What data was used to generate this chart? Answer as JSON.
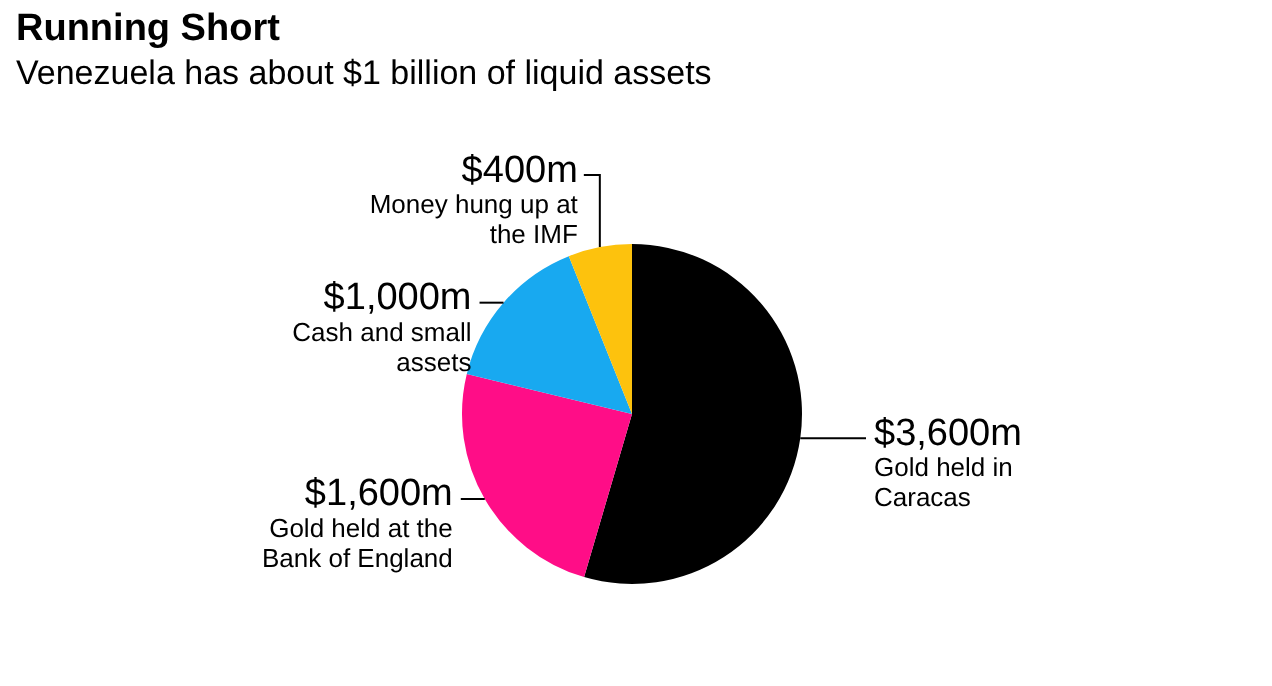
{
  "chart_data": {
    "type": "pie",
    "title": "Running Short",
    "subtitle": "Venezuela has about $1 billion of liquid assets",
    "categories": [
      "Gold held in Caracas",
      "Gold held at the Bank of England",
      "Cash and small assets",
      "Money hung up at the IMF"
    ],
    "values": [
      3600,
      1600,
      1000,
      400
    ],
    "colors": [
      "#000000",
      "#ff0d87",
      "#18a9f0",
      "#fdc20d"
    ],
    "value_labels": [
      "$3,600m",
      "$1,600m",
      "$1,000m",
      "$400m"
    ],
    "legend": false
  }
}
